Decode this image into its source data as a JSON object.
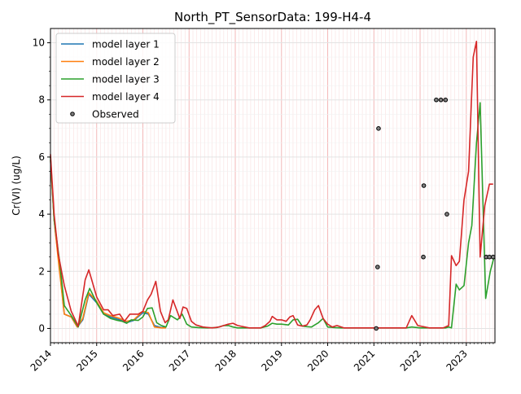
{
  "chart_data": {
    "type": "line",
    "title": "North_PT_SensorData: 199-H4-4",
    "xlabel": "",
    "ylabel": "Cr(VI) (ug/L)",
    "xlim": [
      2014.0,
      2023.62
    ],
    "ylim": [
      -0.5,
      10.5
    ],
    "x_ticks": [
      "2014",
      "2015",
      "2016",
      "2017",
      "2018",
      "2019",
      "2020",
      "2021",
      "2022",
      "2023"
    ],
    "y_ticks": [
      0,
      2,
      4,
      6,
      8,
      10
    ],
    "grid": true,
    "legend_position": "upper-left",
    "series": [
      {
        "name": "model layer 1",
        "color": "#1f77b4",
        "x": [
          2014.0,
          2014.08,
          2014.17,
          2014.3,
          2014.45,
          2014.58,
          2014.7,
          2014.83,
          2015.0,
          2015.15,
          2015.3,
          2015.5,
          2015.65,
          2015.8,
          2016.0,
          2016.12,
          2016.25,
          2016.4,
          2016.5
        ],
        "y": [
          5.9,
          3.8,
          2.5,
          0.5,
          0.4,
          0.05,
          0.3,
          1.2,
          0.9,
          0.5,
          0.4,
          0.3,
          0.2,
          0.28,
          0.55,
          0.5,
          0.1,
          0.03,
          0.05
        ]
      },
      {
        "name": "model layer 2",
        "color": "#ff7f0e",
        "x": [
          2014.0,
          2014.08,
          2014.17,
          2014.3,
          2014.45,
          2014.58,
          2014.7,
          2014.83,
          2015.0,
          2015.15,
          2015.3,
          2015.5,
          2015.65,
          2015.8,
          2016.0,
          2016.12,
          2016.25,
          2016.4,
          2016.5
        ],
        "y": [
          5.9,
          3.8,
          2.4,
          0.5,
          0.4,
          0.05,
          0.35,
          1.25,
          0.95,
          0.55,
          0.45,
          0.35,
          0.25,
          0.3,
          0.6,
          0.55,
          0.05,
          0.02,
          0.02
        ]
      },
      {
        "name": "model layer 3",
        "color": "#2ca02c",
        "x": [
          2014.0,
          2014.08,
          2014.2,
          2014.3,
          2014.45,
          2014.6,
          2014.75,
          2014.85,
          2015.0,
          2015.15,
          2015.3,
          2015.45,
          2015.55,
          2015.65,
          2015.75,
          2015.9,
          2016.0,
          2016.1,
          2016.2,
          2016.3,
          2016.4,
          2016.5,
          2016.6,
          2016.75,
          2016.85,
          2016.95,
          2017.05,
          2017.2,
          2017.4,
          2017.6,
          2017.75,
          2017.85,
          2017.95,
          2018.05,
          2018.3,
          2018.55,
          2018.7,
          2018.8,
          2018.9,
          2019.0,
          2019.15,
          2019.25,
          2019.35,
          2019.45,
          2019.55,
          2019.65,
          2019.72,
          2019.8,
          2019.9,
          2020.0,
          2020.15,
          2020.3,
          2020.5,
          2020.75,
          2021.0,
          2021.3,
          2021.6,
          2021.7,
          2021.82,
          2022.0,
          2022.3,
          2022.55,
          2022.62,
          2022.68,
          2022.78,
          2022.85,
          2022.95,
          2023.05,
          2023.12,
          2023.22,
          2023.3,
          2023.42,
          2023.52,
          2023.6
        ],
        "y": [
          6.0,
          3.8,
          2.3,
          0.8,
          0.45,
          0.05,
          1.0,
          1.4,
          0.9,
          0.5,
          0.35,
          0.28,
          0.25,
          0.18,
          0.3,
          0.28,
          0.4,
          0.7,
          0.72,
          0.2,
          0.1,
          0.05,
          0.45,
          0.3,
          0.5,
          0.15,
          0.05,
          0.03,
          0.02,
          0.03,
          0.1,
          0.1,
          0.05,
          0.02,
          0.02,
          0.02,
          0.08,
          0.18,
          0.15,
          0.15,
          0.12,
          0.3,
          0.32,
          0.08,
          0.06,
          0.05,
          0.12,
          0.2,
          0.35,
          0.05,
          0.03,
          0.02,
          0.02,
          0.02,
          0.02,
          0.02,
          0.02,
          0.02,
          0.05,
          0.02,
          0.02,
          0.02,
          0.05,
          0.02,
          1.55,
          1.35,
          1.5,
          3.0,
          3.6,
          6.5,
          7.9,
          1.05,
          2.0,
          2.5
        ]
      },
      {
        "name": "model layer 4",
        "color": "#d62728",
        "x": [
          2014.0,
          2014.08,
          2014.17,
          2014.3,
          2014.45,
          2014.6,
          2014.75,
          2014.83,
          2015.0,
          2015.15,
          2015.25,
          2015.35,
          2015.5,
          2015.6,
          2015.72,
          2015.82,
          2015.9,
          2016.0,
          2016.1,
          2016.18,
          2016.28,
          2016.38,
          2016.48,
          2016.55,
          2016.65,
          2016.8,
          2016.87,
          2016.95,
          2017.05,
          2017.15,
          2017.3,
          2017.5,
          2017.65,
          2017.75,
          2017.85,
          2017.95,
          2018.05,
          2018.3,
          2018.55,
          2018.65,
          2018.75,
          2018.8,
          2018.9,
          2019.0,
          2019.1,
          2019.18,
          2019.25,
          2019.35,
          2019.45,
          2019.55,
          2019.62,
          2019.72,
          2019.8,
          2019.9,
          2020.0,
          2020.1,
          2020.2,
          2020.35,
          2020.5,
          2020.75,
          2021.0,
          2021.3,
          2021.6,
          2021.7,
          2021.82,
          2021.95,
          2022.2,
          2022.5,
          2022.62,
          2022.68,
          2022.78,
          2022.85,
          2022.95,
          2023.05,
          2023.15,
          2023.22,
          2023.3,
          2023.4,
          2023.5,
          2023.58
        ],
        "y": [
          6.1,
          4.0,
          2.6,
          1.5,
          0.6,
          0.08,
          1.7,
          2.05,
          1.1,
          0.65,
          0.65,
          0.45,
          0.5,
          0.25,
          0.5,
          0.5,
          0.5,
          0.6,
          1.0,
          1.2,
          1.65,
          0.6,
          0.2,
          0.3,
          1.0,
          0.35,
          0.75,
          0.7,
          0.25,
          0.12,
          0.05,
          0.02,
          0.05,
          0.1,
          0.15,
          0.18,
          0.1,
          0.02,
          0.02,
          0.1,
          0.25,
          0.42,
          0.3,
          0.3,
          0.25,
          0.4,
          0.45,
          0.12,
          0.08,
          0.12,
          0.3,
          0.65,
          0.8,
          0.35,
          0.15,
          0.05,
          0.1,
          0.02,
          0.02,
          0.02,
          0.02,
          0.02,
          0.02,
          0.02,
          0.45,
          0.1,
          0.02,
          0.02,
          0.1,
          2.55,
          2.2,
          2.35,
          4.5,
          5.5,
          9.5,
          10.05,
          2.5,
          4.3,
          5.05,
          5.05
        ]
      }
    ],
    "observed": {
      "name": "Observed",
      "marker": "o",
      "x": [
        2021.05,
        2021.08,
        2021.1,
        2022.07,
        2022.08,
        2022.35,
        2022.45,
        2022.55,
        2022.58,
        2023.43,
        2023.5,
        2023.58
      ],
      "y": [
        0.0,
        2.15,
        7.0,
        2.5,
        5.0,
        8.0,
        8.0,
        8.0,
        4.0,
        2.5,
        2.5,
        2.5
      ]
    }
  }
}
